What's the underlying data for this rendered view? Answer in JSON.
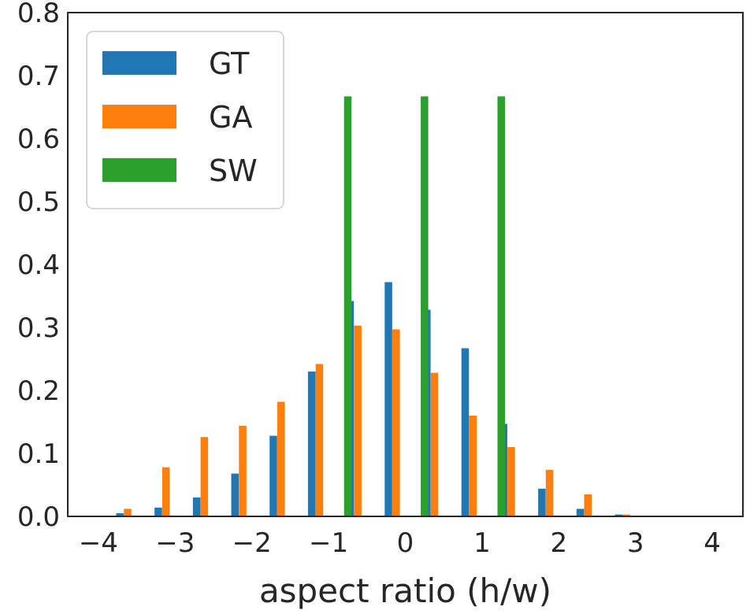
{
  "chart_data": {
    "type": "bar",
    "title": "",
    "xlabel": "aspect ratio (h/w)",
    "ylabel": "",
    "xlim": [
      -4.4,
      4.4
    ],
    "ylim": [
      0,
      0.8
    ],
    "xticks": [
      -4,
      -3,
      -2,
      -1,
      0,
      1,
      2,
      3,
      4
    ],
    "yticks": [
      0.0,
      0.1,
      0.2,
      0.3,
      0.4,
      0.5,
      0.6,
      0.7,
      0.8
    ],
    "xtick_labels": [
      "−4",
      "−3",
      "−2",
      "−1",
      "0",
      "1",
      "2",
      "3",
      "4"
    ],
    "ytick_labels": [
      "0.0",
      "0.1",
      "0.2",
      "0.3",
      "0.4",
      "0.5",
      "0.6",
      "0.7",
      "0.8"
    ],
    "grid": false,
    "legend_position": "top-left",
    "series": [
      {
        "name": "GT",
        "color": "#1f77b4",
        "x": [
          -3.5,
          -3.0,
          -2.5,
          -2.0,
          -1.5,
          -1.0,
          -0.5,
          0.0,
          0.5,
          1.0,
          1.5,
          2.0,
          2.5,
          3.0
        ],
        "values": [
          0.005,
          0.014,
          0.03,
          0.068,
          0.128,
          0.23,
          0.342,
          0.372,
          0.328,
          0.267,
          0.147,
          0.044,
          0.012,
          0.003
        ]
      },
      {
        "name": "GA",
        "color": "#ff7f0e",
        "x": [
          -3.5,
          -3.0,
          -2.5,
          -2.0,
          -1.5,
          -1.0,
          -0.5,
          0.0,
          0.5,
          1.0,
          1.5,
          2.0,
          2.5,
          3.0
        ],
        "values": [
          0.012,
          0.078,
          0.126,
          0.144,
          0.182,
          0.242,
          0.303,
          0.297,
          0.228,
          0.16,
          0.11,
          0.074,
          0.035,
          0.003
        ]
      },
      {
        "name": "SW",
        "color": "#2ca02c",
        "x": [
          -0.75,
          0.25,
          1.25
        ],
        "values": [
          0.667,
          0.667,
          0.667
        ]
      }
    ]
  }
}
